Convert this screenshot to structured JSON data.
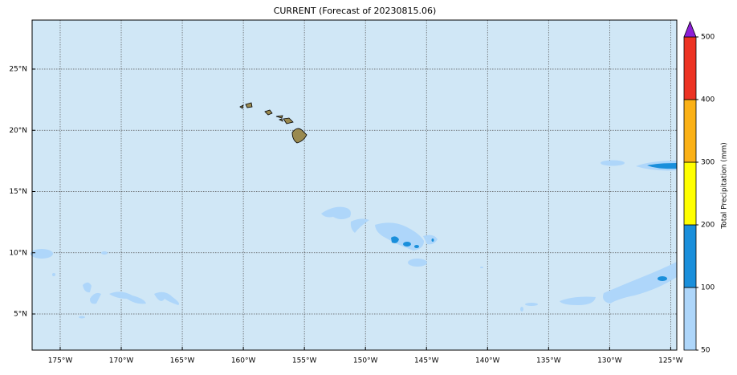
{
  "chart_data": {
    "type": "map",
    "title": "CURRENT (Forecast of 20230815.06)",
    "xlim": [
      -177.3,
      -124.5
    ],
    "ylim": [
      2.05,
      29
    ],
    "xticks": [
      {
        "value": -175,
        "label": "175°W"
      },
      {
        "value": -170,
        "label": "170°W"
      },
      {
        "value": -165,
        "label": "165°W"
      },
      {
        "value": -160,
        "label": "160°W"
      },
      {
        "value": -155,
        "label": "155°W"
      },
      {
        "value": -150,
        "label": "150°W"
      },
      {
        "value": -145,
        "label": "145°W"
      },
      {
        "value": -140,
        "label": "140°W"
      },
      {
        "value": -135,
        "label": "135°W"
      },
      {
        "value": -130,
        "label": "130°W"
      },
      {
        "value": -125,
        "label": "125°W"
      }
    ],
    "yticks": [
      {
        "value": 5,
        "label": "5°N"
      },
      {
        "value": 10,
        "label": "10°N"
      },
      {
        "value": 15,
        "label": "15°N"
      },
      {
        "value": 20,
        "label": "20°N"
      },
      {
        "value": 25,
        "label": "25°N"
      }
    ],
    "grid": true,
    "colorbar": {
      "label": "Total Precipitation (mm)",
      "ticks": [
        50,
        100,
        200,
        300,
        400,
        500
      ],
      "colors": [
        "#aed6fa",
        "#1a8fdb",
        "#ffff00",
        "#fbb117",
        "#ec3323"
      ],
      "extend_color": "#8d1fd6"
    }
  }
}
